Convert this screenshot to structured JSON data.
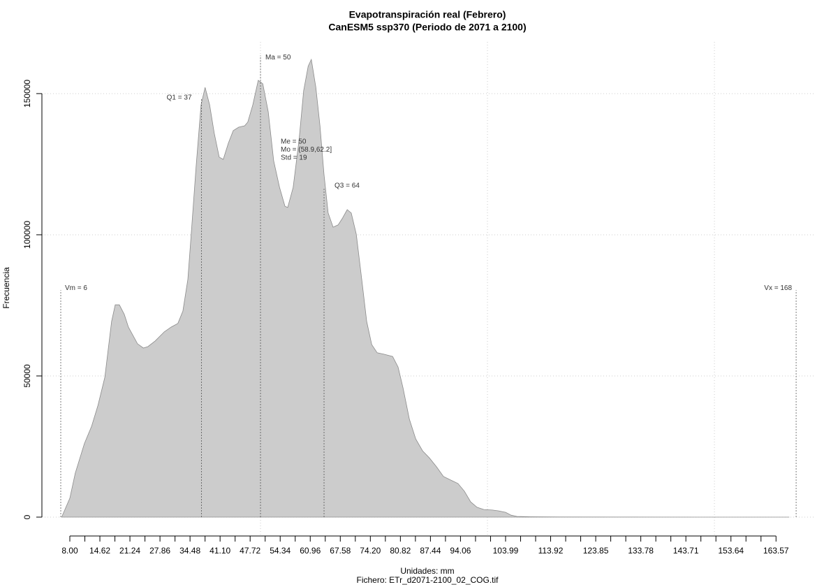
{
  "chart_data": {
    "type": "area",
    "title": "Evapotranspiración real (Febrero)",
    "subtitle": "CanESM5 ssp370 (Periodo de 2071 a 2100)",
    "x_label": "Unidades: mm",
    "file_label": "Fichero: ETr_d2071-2100_02_COG.tif",
    "y_label": "Frecuencia",
    "color": "#cccccc",
    "x": [
      6.2,
      8,
      9.2,
      11.2,
      12.8,
      14.2,
      15.7,
      17.2,
      18.0,
      18.9,
      20.0,
      20.9,
      22.9,
      24.2,
      25.2,
      26.8,
      28.8,
      30.3,
      31.8,
      32.9,
      34.0,
      34.8,
      35.8,
      36.9,
      37.8,
      38.8,
      39.8,
      40.9,
      41.8,
      42.9,
      44.0,
      45.2,
      46.5,
      47.2,
      48.3,
      49.5,
      50.5,
      51.7,
      52.9,
      54.2,
      55.4,
      56.0,
      57.2,
      58.5,
      59.5,
      60.5,
      61.2,
      62.2,
      63.1,
      64.0,
      64.9,
      66.0,
      67.1,
      68.0,
      69.1,
      70.0,
      71.1,
      72.3,
      73.4,
      74.5,
      75.7,
      77.2,
      79.1,
      80.3,
      81.4,
      82.8,
      84.2,
      85.7,
      87.2,
      88.8,
      90.3,
      92.2,
      93.5,
      94.9,
      96.3,
      97.7,
      99.2,
      101.1,
      102.5,
      104.0,
      105.2,
      106.5,
      109.5,
      115.7,
      131,
      146.5,
      166.5
    ],
    "y": [
      0,
      6700,
      15600,
      26000,
      32200,
      39600,
      49500,
      69300,
      75200,
      75200,
      71800,
      67300,
      61400,
      59900,
      60400,
      62400,
      65600,
      67300,
      68600,
      73000,
      84200,
      101500,
      123800,
      146000,
      152200,
      146000,
      136100,
      127500,
      126700,
      132400,
      136900,
      138100,
      138600,
      139900,
      146000,
      154700,
      153500,
      143600,
      126200,
      116800,
      110100,
      109700,
      116800,
      133700,
      151000,
      159700,
      162100,
      152200,
      138600,
      121300,
      107700,
      102700,
      103500,
      105700,
      108900,
      107700,
      100200,
      84200,
      69300,
      61100,
      58200,
      57700,
      56900,
      53200,
      45800,
      34700,
      27700,
      23500,
      21000,
      17800,
      14400,
      12900,
      11900,
      9200,
      5400,
      3500,
      2700,
      2500,
      2200,
      1700,
      700,
      250,
      120,
      50,
      20,
      10,
      0
    ],
    "xlim": [
      0,
      172.3
    ],
    "ylim": [
      -6930,
      168300
    ],
    "xticks": [
      {
        "value": 8,
        "label": "8.00"
      },
      14.62,
      21.24,
      27.86,
      34.48,
      {
        "value": 41.1,
        "label": "41.10"
      },
      47.72,
      54.34,
      60.96,
      67.58,
      {
        "value": 74.2,
        "label": "74.20"
      },
      80.82,
      87.44,
      94.06,
      103.99,
      113.92,
      123.85,
      133.78,
      143.71,
      153.64,
      163.57
    ],
    "xminor_ticks": [
      11.31,
      17.93,
      24.55,
      31.17,
      37.79,
      44.41,
      51.03,
      57.65,
      64.27,
      70.89,
      77.51,
      84.13,
      90.75,
      97.37,
      100.68,
      107.3,
      110.61,
      117.23,
      120.54,
      127.16,
      130.47,
      137.09,
      140.4,
      147.02,
      150.33,
      156.95,
      160.26
    ],
    "yticks": [
      0,
      50000,
      100000,
      150000
    ],
    "xgrid": [
      50,
      100,
      150
    ],
    "grid": true,
    "annotations": [
      {
        "label": "Vm = 6",
        "x": 6,
        "y": 80400
      },
      {
        "label": "Q1 = 37",
        "x": 37,
        "y": 148500
      },
      {
        "label": "Ma = 50",
        "x": 50,
        "y": 163500
      },
      {
        "label": "Q3 = 64",
        "x": 64,
        "y": 116300
      },
      {
        "label": "Vx = 168",
        "x": 168,
        "y": 80400
      }
    ],
    "stats_text": [
      "Me = 50",
      "Mo = (58.9,62.2]",
      "Std = 19"
    ]
  }
}
